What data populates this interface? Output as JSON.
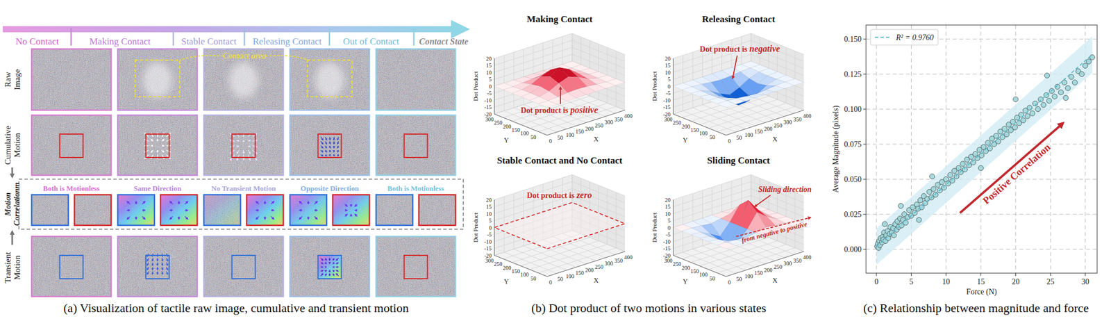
{
  "panel_a": {
    "caption": "(a) Visualization of tactile raw image, cumulative and transient motion",
    "contact_state_label": "Contact State",
    "states": [
      "No Contact",
      "Making Contact",
      "Stable Contact",
      "Releasing Contact",
      "Out of Contact"
    ],
    "row_labels": [
      "Raw Image",
      "Cumulative Motion",
      "Motion Correlationm",
      "Transient Motion"
    ],
    "correlations": [
      "Both is Motionless",
      "Same Direction",
      "No Transient Motion",
      "Opposite Direction",
      "Both is Motionless"
    ],
    "contact_area_label": "Contact area"
  },
  "panel_b": {
    "caption": "(b) Dot product of two motions in various states"
  },
  "panel_c": {
    "caption": "(c) Relationship  between magnitude and force"
  },
  "chart_data": [
    {
      "type": "surface",
      "title": "Making Contact",
      "x": [
        0,
        50,
        100,
        150,
        200,
        250,
        300,
        350,
        400
      ],
      "y": [
        0,
        50,
        100,
        150,
        200,
        250,
        300
      ],
      "values": [
        [
          0,
          0,
          0,
          0,
          0,
          0,
          0,
          0,
          0
        ],
        [
          0,
          0,
          0.5,
          1.2,
          1.6,
          1.2,
          0.5,
          0,
          0
        ],
        [
          0,
          0.3,
          2,
          5.5,
          8,
          5.5,
          2,
          0.3,
          0
        ],
        [
          0,
          0.5,
          3,
          8,
          12,
          8.5,
          3,
          0.5,
          0
        ],
        [
          0,
          0.3,
          2,
          5.5,
          8,
          5.5,
          2,
          0.3,
          0
        ],
        [
          0,
          0,
          0.5,
          1.2,
          1.6,
          1.2,
          0.5,
          0,
          0
        ],
        [
          0,
          0,
          0,
          0,
          0,
          0,
          0,
          0,
          0
        ]
      ],
      "xlim": [
        0,
        400
      ],
      "ylim": [
        0,
        300
      ],
      "zlim": [
        -20,
        20
      ],
      "xticks": [
        0,
        50,
        100,
        150,
        200,
        250,
        300,
        350,
        400
      ],
      "yticks": [
        50,
        100,
        150,
        200,
        250,
        300
      ],
      "zticks": [
        -20,
        -15,
        -10,
        -5,
        0,
        5,
        10,
        15,
        20
      ],
      "x_label": "X",
      "y_label": "Y",
      "z_label": "Dot Product",
      "grid": true,
      "color": "#67000d",
      "annotation": {
        "text": "Dot product is",
        "emphasis": "positive"
      }
    },
    {
      "type": "surface",
      "title": "Releasing Contact",
      "x": [
        0,
        50,
        100,
        150,
        200,
        250,
        300,
        350,
        400
      ],
      "y": [
        0,
        50,
        100,
        150,
        200,
        250,
        300
      ],
      "values": [
        [
          0,
          0,
          0,
          0,
          0,
          0,
          0,
          0,
          0
        ],
        [
          0,
          0,
          -0.5,
          -1.3,
          -1.8,
          -1.3,
          -0.5,
          0,
          0
        ],
        [
          0,
          -0.4,
          -2.8,
          -7,
          -10,
          -7,
          -2.8,
          -0.4,
          0
        ],
        [
          0,
          -0.6,
          -4,
          -10,
          -15,
          -10,
          -4,
          -0.6,
          0
        ],
        [
          0,
          -0.4,
          -2.8,
          -7,
          -10,
          -7,
          -2.8,
          -0.4,
          0
        ],
        [
          0,
          0,
          -0.5,
          -1.3,
          -1.8,
          -1.3,
          -0.5,
          0,
          0
        ],
        [
          0,
          0,
          0,
          0,
          0,
          0,
          0,
          0,
          0
        ]
      ],
      "xlim": [
        0,
        400
      ],
      "ylim": [
        0,
        300
      ],
      "zlim": [
        -20,
        20
      ],
      "xticks": [
        0,
        50,
        100,
        150,
        200,
        250,
        300,
        350,
        400
      ],
      "yticks": [
        50,
        100,
        150,
        200,
        250,
        300
      ],
      "zticks": [
        -20,
        -15,
        -10,
        -5,
        0,
        5,
        10,
        15,
        20
      ],
      "x_label": "X",
      "y_label": "Y",
      "z_label": "Dot Product",
      "grid": true,
      "color": "#08306b",
      "annotation": {
        "text": "Dot product is",
        "emphasis": "negative"
      }
    },
    {
      "type": "surface",
      "title": "Stable Contact and No Contact",
      "x": [
        0,
        50,
        100,
        150,
        200,
        250,
        300,
        350,
        400
      ],
      "y": [
        0,
        50,
        100,
        150,
        200,
        250,
        300
      ],
      "values": [
        [
          0,
          0,
          0,
          0,
          0,
          0,
          0,
          0,
          0
        ],
        [
          0,
          0,
          0,
          0,
          0,
          0,
          0,
          0,
          0
        ],
        [
          0,
          0,
          0,
          0,
          0,
          0,
          0,
          0,
          0
        ],
        [
          0,
          0,
          0,
          0,
          0,
          0,
          0,
          0,
          0
        ],
        [
          0,
          0,
          0,
          0,
          0,
          0,
          0,
          0,
          0
        ],
        [
          0,
          0,
          0,
          0,
          0,
          0,
          0,
          0,
          0
        ],
        [
          0,
          0,
          0,
          0,
          0,
          0,
          0,
          0,
          0
        ]
      ],
      "xlim": [
        0,
        400
      ],
      "ylim": [
        0,
        300
      ],
      "zlim": [
        -20,
        20
      ],
      "xticks": [
        0,
        50,
        100,
        150,
        200,
        250,
        300,
        350,
        400
      ],
      "yticks": [
        50,
        100,
        150,
        200,
        250,
        300
      ],
      "zticks": [
        -20,
        -15,
        -10,
        -5,
        0,
        5,
        10,
        15,
        20
      ],
      "x_label": "X",
      "y_label": "Y",
      "z_label": "Dot Product",
      "grid": true,
      "color": "#d62728",
      "line_style": "dashed",
      "annotation": {
        "text": "Dot product is",
        "emphasis": "zero"
      }
    },
    {
      "type": "surface",
      "title": "Sliding Contact",
      "x": [
        0,
        50,
        100,
        150,
        200,
        250,
        300,
        350,
        400
      ],
      "y": [
        0,
        50,
        100,
        150,
        200,
        250,
        300
      ],
      "values": [
        [
          0,
          0,
          0,
          0,
          0,
          0,
          0,
          0,
          0
        ],
        [
          0,
          0,
          -0.6,
          -1.3,
          0,
          1.5,
          0.6,
          0,
          0
        ],
        [
          0,
          -0.6,
          -4,
          -8,
          0,
          10,
          4.5,
          0.6,
          0
        ],
        [
          0,
          -1,
          -6,
          -12,
          0,
          16,
          7,
          1,
          0
        ],
        [
          0,
          -0.6,
          -4,
          -8,
          0,
          10,
          4.5,
          0.6,
          0
        ],
        [
          0,
          0,
          -0.6,
          -1.3,
          0,
          1.5,
          0.6,
          0,
          0
        ],
        [
          0,
          0,
          0,
          0,
          0,
          0,
          0,
          0,
          0
        ]
      ],
      "xlim": [
        0,
        400
      ],
      "ylim": [
        0,
        300
      ],
      "zlim": [
        -20,
        20
      ],
      "xticks": [
        0,
        50,
        100,
        150,
        200,
        250,
        300,
        350,
        400
      ],
      "yticks": [
        50,
        100,
        150,
        200,
        250,
        300
      ],
      "zticks": [
        -20,
        -15,
        -10,
        -5,
        0,
        5,
        10,
        15,
        20
      ],
      "x_label": "X",
      "y_label": "Y",
      "z_label": "Dot Product",
      "grid": true,
      "colors": [
        "#08306b",
        "#67000d"
      ],
      "annotation": {
        "text": "Sliding direction"
      },
      "arrow_label": "from negative to positive"
    },
    {
      "type": "scatter",
      "x": [
        0.1,
        0.2,
        0.3,
        0.4,
        0.5,
        0.6,
        0.8,
        0.9,
        1.0,
        1.1,
        1.3,
        1.4,
        1.6,
        1.7,
        1.9,
        2.0,
        2.2,
        2.4,
        2.5,
        2.7,
        2.9,
        3.0,
        3.2,
        3.4,
        3.6,
        3.8,
        4.0,
        4.2,
        4.5,
        4.7,
        5.0,
        5.2,
        5.5,
        5.8,
        6.0,
        6.3,
        6.5,
        6.8,
        7.0,
        7.3,
        7.6,
        7.9,
        8.2,
        8.5,
        8.8,
        9.1,
        9.4,
        9.7,
        10.0,
        10.3,
        10.6,
        10.9,
        11.2,
        11.5,
        11.8,
        12.1,
        12.4,
        12.7,
        13.0,
        13.3,
        13.6,
        13.9,
        14.2,
        14.5,
        14.8,
        15.1,
        15.4,
        15.7,
        16.0,
        16.3,
        16.6,
        16.9,
        17.2,
        17.5,
        17.8,
        18.1,
        18.4,
        18.7,
        19.0,
        19.3,
        19.6,
        19.9,
        20.2,
        20.5,
        20.8,
        21.1,
        21.4,
        21.7,
        22.0,
        22.4,
        22.8,
        23.2,
        23.6,
        24.0,
        24.4,
        24.8,
        25.2,
        25.6,
        26.0,
        26.5,
        27.0,
        27.5,
        28.0,
        28.5,
        29.0,
        29.5,
        30.0,
        30.5,
        31.0,
        1.2,
        3.5,
        6.1,
        8.0,
        15.0,
        20.0,
        24.5,
        27.2
      ],
      "values": [
        0.002,
        0.004,
        0.001,
        0.006,
        0.003,
        0.008,
        0.005,
        0.009,
        0.007,
        0.012,
        0.006,
        0.01,
        0.013,
        0.008,
        0.011,
        0.016,
        0.012,
        0.015,
        0.01,
        0.018,
        0.014,
        0.02,
        0.016,
        0.022,
        0.017,
        0.021,
        0.025,
        0.019,
        0.023,
        0.028,
        0.024,
        0.03,
        0.026,
        0.032,
        0.029,
        0.035,
        0.03,
        0.038,
        0.033,
        0.036,
        0.041,
        0.037,
        0.043,
        0.039,
        0.046,
        0.042,
        0.048,
        0.044,
        0.05,
        0.047,
        0.053,
        0.049,
        0.056,
        0.052,
        0.058,
        0.055,
        0.061,
        0.057,
        0.064,
        0.06,
        0.066,
        0.062,
        0.068,
        0.065,
        0.071,
        0.067,
        0.073,
        0.07,
        0.076,
        0.072,
        0.079,
        0.075,
        0.081,
        0.077,
        0.084,
        0.08,
        0.086,
        0.082,
        0.089,
        0.085,
        0.091,
        0.087,
        0.094,
        0.09,
        0.096,
        0.092,
        0.099,
        0.095,
        0.101,
        0.097,
        0.104,
        0.1,
        0.107,
        0.103,
        0.11,
        0.106,
        0.113,
        0.109,
        0.116,
        0.112,
        0.119,
        0.115,
        0.123,
        0.119,
        0.127,
        0.125,
        0.131,
        0.134,
        0.137,
        0.018,
        0.031,
        0.021,
        0.052,
        0.058,
        0.107,
        0.124,
        0.108
      ],
      "color": "#9fd6da",
      "marker": "circle",
      "fit": {
        "name": "R² = 0.9760",
        "x": [
          0,
          31
        ],
        "values": [
          0.002,
          0.139
        ],
        "color": "#5bbccc",
        "line_style": "dashed"
      },
      "band": {
        "x": [
          0,
          31
        ],
        "lower": [
          -0.011,
          0.126
        ],
        "upper": [
          0.015,
          0.152
        ],
        "color": "#cdeaf3"
      },
      "annotation": {
        "text": "Positive Correlation",
        "x": [
          12,
          26.8
        ],
        "y": [
          0.026,
          0.09
        ],
        "color": "#c0282d"
      },
      "x_label": "Force (N)",
      "y_label": "Average Magnitude (pixels)",
      "xlim": [
        -1.5,
        31.7
      ],
      "ylim": [
        -0.017,
        0.16
      ],
      "xticks": [
        0,
        5,
        10,
        15,
        20,
        25,
        30
      ],
      "yticks": [
        {
          "value": 0,
          "label": "0.000"
        },
        {
          "value": 0.025,
          "label": "0.025"
        },
        {
          "value": 0.05,
          "label": "0.050"
        },
        {
          "value": 0.075,
          "label": "0.075"
        },
        {
          "value": 0.1,
          "label": "0.100"
        },
        {
          "value": 0.125,
          "label": "0.125"
        },
        {
          "value": 0.15,
          "label": "0.150"
        }
      ],
      "grid": true,
      "legend": "upper left"
    }
  ]
}
